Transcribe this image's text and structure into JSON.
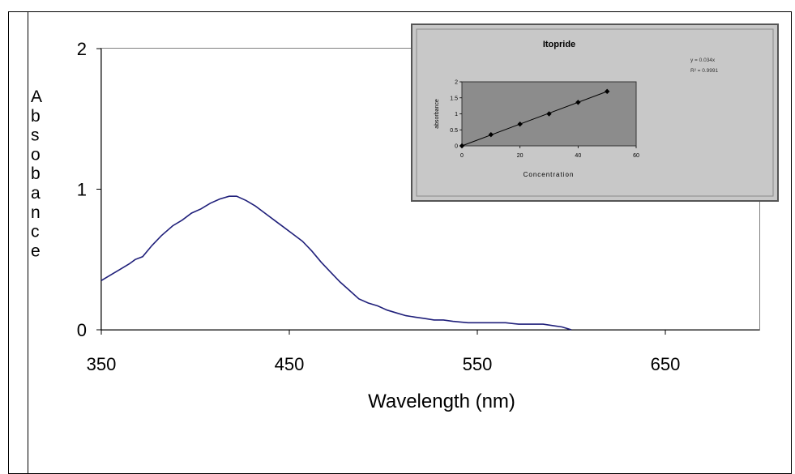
{
  "chart_data": [
    {
      "type": "line",
      "title": "",
      "xlabel": "Wavelength (nm)",
      "ylabel": "Absobance",
      "xlim": [
        350,
        700
      ],
      "ylim": [
        0,
        2
      ],
      "xticks": [
        "350",
        "450",
        "550",
        "650"
      ],
      "yticks": [
        "0",
        "1",
        "2"
      ],
      "grid": false,
      "legend": "none",
      "line_color": "#1f1f7a",
      "series": [
        {
          "x": [
            350,
            355,
            360,
            365,
            368,
            372,
            377,
            382,
            388,
            393,
            398,
            403,
            408,
            413,
            418,
            422,
            427,
            432,
            437,
            442,
            447,
            452,
            457,
            462,
            467,
            472,
            477,
            482,
            487,
            492,
            497,
            502,
            507,
            512,
            517,
            522,
            527,
            532,
            537,
            545,
            555,
            565,
            572,
            580,
            585,
            590,
            595,
            600
          ],
          "y": [
            0.35,
            0.39,
            0.43,
            0.47,
            0.5,
            0.52,
            0.6,
            0.67,
            0.74,
            0.78,
            0.83,
            0.86,
            0.9,
            0.93,
            0.95,
            0.95,
            0.92,
            0.88,
            0.83,
            0.78,
            0.73,
            0.68,
            0.63,
            0.56,
            0.48,
            0.41,
            0.34,
            0.28,
            0.22,
            0.19,
            0.17,
            0.14,
            0.12,
            0.1,
            0.09,
            0.08,
            0.07,
            0.07,
            0.06,
            0.05,
            0.05,
            0.05,
            0.04,
            0.04,
            0.04,
            0.03,
            0.02,
            0.0
          ]
        }
      ]
    },
    {
      "type": "scatter",
      "title": "Itopride",
      "xlabel": "Concentration",
      "ylabel": "absorbance",
      "xlim": [
        0,
        60
      ],
      "ylim": [
        0,
        2
      ],
      "xticks": [
        "0",
        "20",
        "40",
        "60"
      ],
      "yticks": [
        "0",
        "0.5",
        "1",
        "1.5",
        "2"
      ],
      "plot_background": "#8c8c8c",
      "panel_background": "#c8c8c8",
      "trendline": true,
      "annotations": [
        "y = 0.034x",
        "R² = 0.9991"
      ],
      "series": [
        {
          "x": [
            0,
            10,
            20,
            30,
            40,
            50
          ],
          "y": [
            0.0,
            0.35,
            0.68,
            1.0,
            1.36,
            1.7
          ]
        }
      ]
    }
  ]
}
